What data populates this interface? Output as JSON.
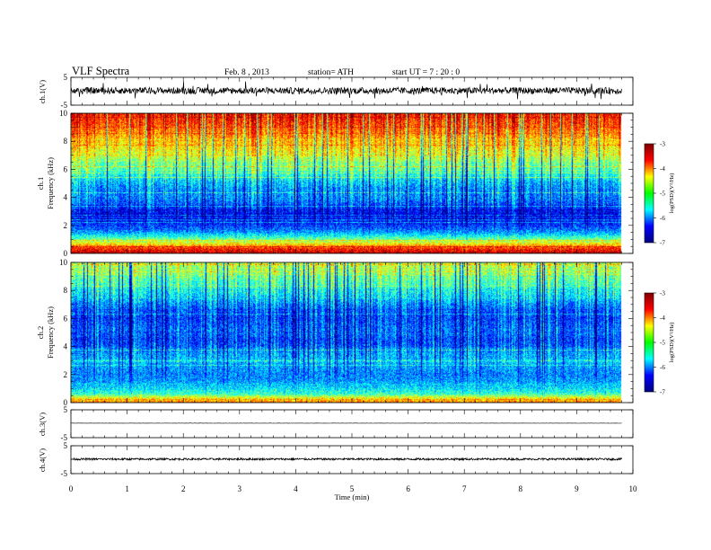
{
  "header": {
    "title": "VLF Spectra",
    "date": "Feb. 8  , 2013",
    "station": "station= ATH",
    "start_ut": "start  UT  =   7  : 20 : 0"
  },
  "labels": {
    "ch1_waveform": "ch.1(V)",
    "ch1_spec_ch": "ch.1",
    "ch1_spec_freq": "Frequency  (kHz)",
    "ch2_spec_ch": "ch.2",
    "ch2_spec_freq": "Frequency  (kHz)",
    "ch3_waveform": "ch.3(V)",
    "ch4_waveform": "ch.4(V)",
    "xlabel": "Time  (min)",
    "colorbar_label": "log(PSD)(V²/Hz)"
  },
  "colors": {
    "jet": [
      "#000080",
      "#0000ff",
      "#00ffff",
      "#00ff00",
      "#ffff00",
      "#ff0000",
      "#800000"
    ],
    "background": "#ffffff",
    "axis": "#000000"
  },
  "chart_data": [
    {
      "type": "line",
      "name": "ch.1 waveform",
      "ylabel": "ch.1(V)",
      "ylim": [
        -5,
        5
      ],
      "yticks": [
        5,
        -5
      ],
      "x_range_min": [
        0,
        9.8
      ],
      "baseline_V": 0.2,
      "noise_amplitude_V": 1.2,
      "spike_amplitude_V": 3.5
    },
    {
      "type": "heatmap",
      "name": "ch.1 spectrogram",
      "ylabel": "Frequency  (kHz)",
      "channel": "ch.1",
      "ylim": [
        0,
        10
      ],
      "yticks": [
        0,
        2,
        4,
        6,
        8,
        10
      ],
      "x_range_min": [
        0,
        9.8
      ],
      "colorbar": {
        "label": "log(PSD)(V²/Hz)",
        "range": [
          -7,
          -3
        ],
        "ticks": [
          -3,
          -4,
          -5,
          -6,
          -7
        ]
      },
      "band_profile": [
        [
          0.0,
          -3.3
        ],
        [
          0.3,
          -3.6
        ],
        [
          0.6,
          -4.3
        ],
        [
          1.0,
          -5.1
        ],
        [
          1.5,
          -5.9
        ],
        [
          2.0,
          -6.3
        ],
        [
          2.5,
          -6.7
        ],
        [
          3.0,
          -6.5
        ],
        [
          3.5,
          -6.2
        ],
        [
          4.0,
          -6.0
        ],
        [
          4.5,
          -6.0
        ],
        [
          5.0,
          -5.8
        ],
        [
          5.5,
          -5.5
        ],
        [
          6.0,
          -5.2
        ],
        [
          6.5,
          -5.0
        ],
        [
          7.0,
          -4.7
        ],
        [
          7.5,
          -4.5
        ],
        [
          8.0,
          -4.3
        ],
        [
          8.5,
          -4.1
        ],
        [
          9.0,
          -3.9
        ],
        [
          9.5,
          -3.7
        ],
        [
          10.0,
          -3.6
        ]
      ]
    },
    {
      "type": "heatmap",
      "name": "ch.2 spectrogram",
      "ylabel": "Frequency  (kHz)",
      "channel": "ch.2",
      "ylim": [
        0,
        10
      ],
      "yticks": [
        0,
        2,
        4,
        6,
        8,
        10
      ],
      "x_range_min": [
        0,
        9.8
      ],
      "colorbar": {
        "label": "log(PSD)(V²/Hz)",
        "range": [
          -7,
          -3
        ],
        "ticks": [
          -3,
          -4,
          -5,
          -6,
          -7
        ]
      },
      "band_profile": [
        [
          0.0,
          -4.0
        ],
        [
          0.3,
          -4.5
        ],
        [
          0.6,
          -5.3
        ],
        [
          1.0,
          -5.6
        ],
        [
          1.5,
          -5.9
        ],
        [
          2.0,
          -6.0
        ],
        [
          2.5,
          -5.9
        ],
        [
          3.0,
          -5.8
        ],
        [
          3.5,
          -5.9
        ],
        [
          4.0,
          -6.2
        ],
        [
          4.5,
          -6.3
        ],
        [
          5.0,
          -6.1
        ],
        [
          5.5,
          -6.2
        ],
        [
          6.0,
          -6.3
        ],
        [
          6.5,
          -6.2
        ],
        [
          7.0,
          -6.0
        ],
        [
          7.5,
          -5.7
        ],
        [
          8.0,
          -5.5
        ],
        [
          8.5,
          -5.3
        ],
        [
          9.0,
          -5.1
        ],
        [
          9.5,
          -4.9
        ],
        [
          10.0,
          -4.8
        ]
      ]
    },
    {
      "type": "line",
      "name": "ch.3 waveform",
      "ylabel": "ch.3(V)",
      "ylim": [
        -5,
        5
      ],
      "yticks": [
        5,
        -5
      ],
      "x_range_min": [
        0,
        9.8
      ],
      "baseline_V": 0.2,
      "noise_amplitude_V": 0.05
    },
    {
      "type": "line",
      "name": "ch.4 waveform",
      "ylabel": "ch.4(V)",
      "ylim": [
        -5,
        5
      ],
      "yticks": [
        5,
        -5
      ],
      "x_range_min": [
        0,
        9.8
      ],
      "baseline_V": 0.2,
      "noise_amplitude_V": 0.35
    }
  ],
  "x_axis": {
    "label": "Time  (min)",
    "range": [
      0,
      10
    ],
    "ticks": [
      0,
      1,
      2,
      3,
      4,
      5,
      6,
      7,
      8,
      9,
      10
    ],
    "tick_labels": [
      "0",
      "1",
      "2",
      "3",
      "4",
      "5",
      "6",
      "7",
      "8",
      "9",
      "10"
    ]
  }
}
